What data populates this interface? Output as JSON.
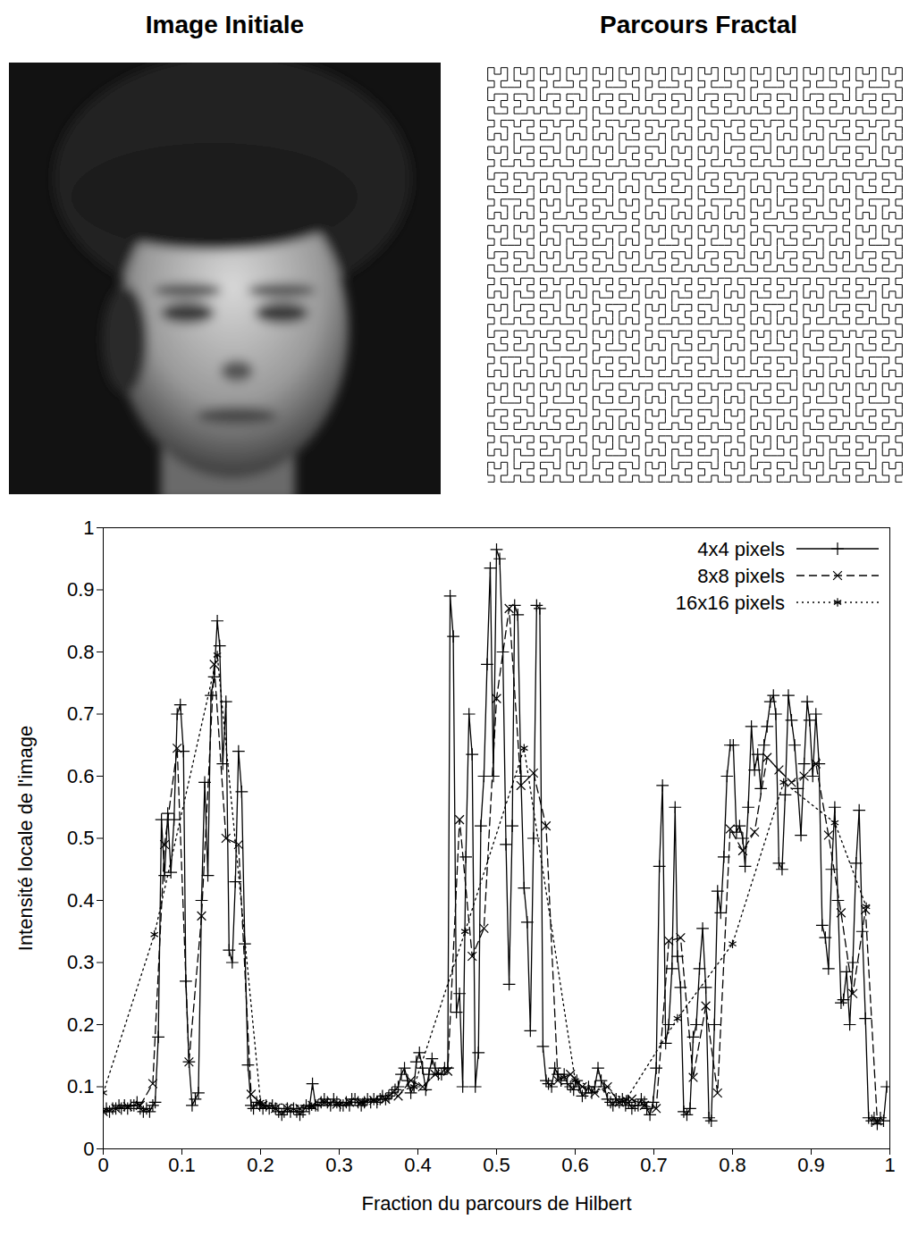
{
  "panels": {
    "image": {
      "title": "Image Initiale"
    },
    "curve": {
      "title": "Parcours Fractal"
    }
  },
  "chart_data": {
    "type": "line",
    "xlabel": "Fraction du parcours de Hilbert",
    "ylabel": "Intensité locale de l'image",
    "xlim": [
      0,
      1
    ],
    "ylim": [
      0,
      1
    ],
    "xticks": [
      0,
      0.1,
      0.2,
      0.3,
      0.4,
      0.5,
      0.6,
      0.7,
      0.8,
      0.9,
      1
    ],
    "yticks": [
      0,
      0.1,
      0.2,
      0.3,
      0.4,
      0.5,
      0.6,
      0.7,
      0.8,
      0.9,
      1
    ],
    "grid": false,
    "legend": "top-right",
    "series": [
      {
        "name": "4x4 pixels",
        "color": "#000000",
        "marker": "plus",
        "line_style": "solid",
        "x": [
          0,
          0.004,
          0.008,
          0.012,
          0.016,
          0.02,
          0.023,
          0.027,
          0.031,
          0.035,
          0.039,
          0.043,
          0.047,
          0.051,
          0.055,
          0.059,
          0.063,
          0.066,
          0.07,
          0.074,
          0.078,
          0.082,
          0.086,
          0.09,
          0.094,
          0.098,
          0.102,
          0.105,
          0.109,
          0.113,
          0.117,
          0.121,
          0.125,
          0.129,
          0.133,
          0.137,
          0.141,
          0.145,
          0.148,
          0.152,
          0.156,
          0.16,
          0.164,
          0.168,
          0.172,
          0.176,
          0.18,
          0.184,
          0.188,
          0.191,
          0.195,
          0.199,
          0.203,
          0.207,
          0.211,
          0.215,
          0.219,
          0.223,
          0.227,
          0.23,
          0.234,
          0.238,
          0.242,
          0.246,
          0.25,
          0.254,
          0.258,
          0.262,
          0.266,
          0.27,
          0.273,
          0.277,
          0.281,
          0.285,
          0.289,
          0.293,
          0.297,
          0.301,
          0.305,
          0.309,
          0.313,
          0.316,
          0.32,
          0.324,
          0.328,
          0.332,
          0.336,
          0.34,
          0.344,
          0.348,
          0.352,
          0.355,
          0.359,
          0.363,
          0.367,
          0.371,
          0.375,
          0.379,
          0.383,
          0.387,
          0.391,
          0.395,
          0.398,
          0.402,
          0.406,
          0.41,
          0.414,
          0.418,
          0.422,
          0.426,
          0.43,
          0.434,
          0.438,
          0.441,
          0.445,
          0.449,
          0.453,
          0.457,
          0.461,
          0.465,
          0.469,
          0.473,
          0.477,
          0.48,
          0.484,
          0.488,
          0.492,
          0.496,
          0.5,
          0.504,
          0.508,
          0.512,
          0.516,
          0.52,
          0.523,
          0.527,
          0.531,
          0.535,
          0.539,
          0.543,
          0.547,
          0.551,
          0.555,
          0.559,
          0.563,
          0.566,
          0.57,
          0.574,
          0.578,
          0.582,
          0.586,
          0.59,
          0.594,
          0.598,
          0.602,
          0.605,
          0.609,
          0.613,
          0.617,
          0.621,
          0.625,
          0.629,
          0.633,
          0.637,
          0.641,
          0.645,
          0.648,
          0.652,
          0.656,
          0.66,
          0.664,
          0.668,
          0.672,
          0.676,
          0.68,
          0.684,
          0.688,
          0.691,
          0.695,
          0.699,
          0.703,
          0.707,
          0.711,
          0.715,
          0.719,
          0.723,
          0.727,
          0.73,
          0.734,
          0.738,
          0.742,
          0.746,
          0.75,
          0.754,
          0.758,
          0.762,
          0.766,
          0.77,
          0.773,
          0.777,
          0.781,
          0.785,
          0.789,
          0.793,
          0.797,
          0.801,
          0.805,
          0.809,
          0.813,
          0.816,
          0.82,
          0.824,
          0.828,
          0.832,
          0.836,
          0.84,
          0.844,
          0.848,
          0.852,
          0.855,
          0.859,
          0.863,
          0.867,
          0.871,
          0.875,
          0.879,
          0.883,
          0.887,
          0.891,
          0.895,
          0.898,
          0.902,
          0.906,
          0.91,
          0.914,
          0.918,
          0.922,
          0.926,
          0.93,
          0.934,
          0.938,
          0.941,
          0.945,
          0.949,
          0.953,
          0.957,
          0.961,
          0.965,
          0.969,
          0.973,
          0.977,
          0.98,
          0.984,
          0.988,
          0.992,
          0.996
        ],
        "values": [
          0.06,
          0.065,
          0.06,
          0.065,
          0.065,
          0.07,
          0.065,
          0.07,
          0.065,
          0.07,
          0.07,
          0.075,
          0.065,
          0.06,
          0.065,
          0.06,
          0.07,
          0.075,
          0.18,
          0.53,
          0.44,
          0.54,
          0.445,
          0.53,
          0.7,
          0.715,
          0.64,
          0.27,
          0.14,
          0.07,
          0.08,
          0.09,
          0.4,
          0.59,
          0.44,
          0.73,
          0.76,
          0.85,
          0.81,
          0.62,
          0.72,
          0.32,
          0.3,
          0.43,
          0.64,
          0.575,
          0.33,
          0.135,
          0.07,
          0.065,
          0.075,
          0.07,
          0.065,
          0.07,
          0.065,
          0.07,
          0.065,
          0.06,
          0.055,
          0.06,
          0.065,
          0.06,
          0.065,
          0.06,
          0.055,
          0.06,
          0.07,
          0.065,
          0.105,
          0.07,
          0.07,
          0.075,
          0.08,
          0.075,
          0.07,
          0.08,
          0.075,
          0.07,
          0.07,
          0.075,
          0.07,
          0.08,
          0.08,
          0.075,
          0.07,
          0.075,
          0.08,
          0.075,
          0.08,
          0.075,
          0.08,
          0.085,
          0.08,
          0.085,
          0.09,
          0.095,
          0.1,
          0.12,
          0.13,
          0.11,
          0.09,
          0.1,
          0.14,
          0.155,
          0.13,
          0.095,
          0.12,
          0.145,
          0.13,
          0.12,
          0.12,
          0.13,
          0.13,
          0.89,
          0.825,
          0.22,
          0.25,
          0.1,
          0.47,
          0.7,
          0.635,
          0.1,
          0.155,
          0.52,
          0.6,
          0.78,
          0.935,
          0.6,
          0.965,
          0.95,
          0.8,
          0.49,
          0.265,
          0.52,
          0.875,
          0.86,
          0.6,
          0.42,
          0.365,
          0.19,
          0.5,
          0.875,
          0.87,
          0.165,
          0.11,
          0.105,
          0.1,
          0.13,
          0.12,
          0.11,
          0.12,
          0.105,
          0.1,
          0.095,
          0.11,
          0.1,
          0.085,
          0.09,
          0.1,
          0.09,
          0.1,
          0.13,
          0.11,
          0.1,
          0.08,
          0.075,
          0.07,
          0.08,
          0.075,
          0.08,
          0.07,
          0.075,
          0.065,
          0.07,
          0.07,
          0.08,
          0.075,
          0.065,
          0.055,
          0.075,
          0.13,
          0.455,
          0.585,
          0.17,
          0.2,
          0.29,
          0.55,
          0.31,
          0.26,
          0.06,
          0.055,
          0.065,
          0.18,
          0.2,
          0.29,
          0.355,
          0.26,
          0.05,
          0.045,
          0.2,
          0.415,
          0.38,
          0.47,
          0.6,
          0.65,
          0.65,
          0.51,
          0.52,
          0.5,
          0.455,
          0.55,
          0.68,
          0.61,
          0.635,
          0.58,
          0.65,
          0.68,
          0.72,
          0.73,
          0.7,
          0.46,
          0.45,
          0.57,
          0.73,
          0.69,
          0.65,
          0.58,
          0.505,
          0.62,
          0.72,
          0.69,
          0.6,
          0.7,
          0.62,
          0.36,
          0.34,
          0.29,
          0.45,
          0.55,
          0.4,
          0.235,
          0.24,
          0.285,
          0.2,
          0.3,
          0.46,
          0.545,
          0.35,
          0.21,
          0.05,
          0.045,
          0.05,
          0.04,
          0.05,
          0.045,
          0.1
        ]
      },
      {
        "name": "8x8 pixels",
        "color": "#000000",
        "marker": "times",
        "line_style": "dashed",
        "x": [
          0,
          0.016,
          0.031,
          0.047,
          0.063,
          0.078,
          0.094,
          0.109,
          0.125,
          0.141,
          0.156,
          0.172,
          0.188,
          0.203,
          0.219,
          0.234,
          0.25,
          0.266,
          0.281,
          0.297,
          0.313,
          0.328,
          0.344,
          0.359,
          0.375,
          0.391,
          0.406,
          0.422,
          0.438,
          0.453,
          0.469,
          0.484,
          0.5,
          0.516,
          0.531,
          0.547,
          0.563,
          0.578,
          0.594,
          0.609,
          0.625,
          0.641,
          0.656,
          0.672,
          0.688,
          0.703,
          0.719,
          0.734,
          0.75,
          0.766,
          0.781,
          0.797,
          0.813,
          0.828,
          0.844,
          0.859,
          0.875,
          0.891,
          0.906,
          0.922,
          0.938,
          0.953,
          0.969,
          0.984
        ],
        "values": [
          0.06,
          0.065,
          0.068,
          0.07,
          0.105,
          0.49,
          0.645,
          0.14,
          0.375,
          0.78,
          0.5,
          0.49,
          0.088,
          0.07,
          0.065,
          0.065,
          0.065,
          0.07,
          0.075,
          0.072,
          0.075,
          0.075,
          0.078,
          0.08,
          0.085,
          0.11,
          0.1,
          0.12,
          0.125,
          0.53,
          0.31,
          0.355,
          0.725,
          0.87,
          0.585,
          0.605,
          0.52,
          0.11,
          0.12,
          0.1,
          0.09,
          0.1,
          0.075,
          0.08,
          0.07,
          0.065,
          0.335,
          0.34,
          0.115,
          0.23,
          0.09,
          0.515,
          0.48,
          0.51,
          0.63,
          0.61,
          0.59,
          0.6,
          0.62,
          0.505,
          0.38,
          0.25,
          0.385,
          0.045
        ]
      },
      {
        "name": "16x16 pixels",
        "color": "#000000",
        "marker": "asterisk",
        "line_style": "dotted",
        "x": [
          0,
          0.065,
          0.145,
          0.2,
          0.265,
          0.33,
          0.395,
          0.46,
          0.535,
          0.6,
          0.665,
          0.73,
          0.8,
          0.865,
          0.93,
          0.97
        ],
        "values": [
          0.09,
          0.345,
          0.795,
          0.075,
          0.068,
          0.075,
          0.1,
          0.35,
          0.645,
          0.11,
          0.08,
          0.21,
          0.33,
          0.59,
          0.525,
          0.39
        ]
      }
    ]
  }
}
